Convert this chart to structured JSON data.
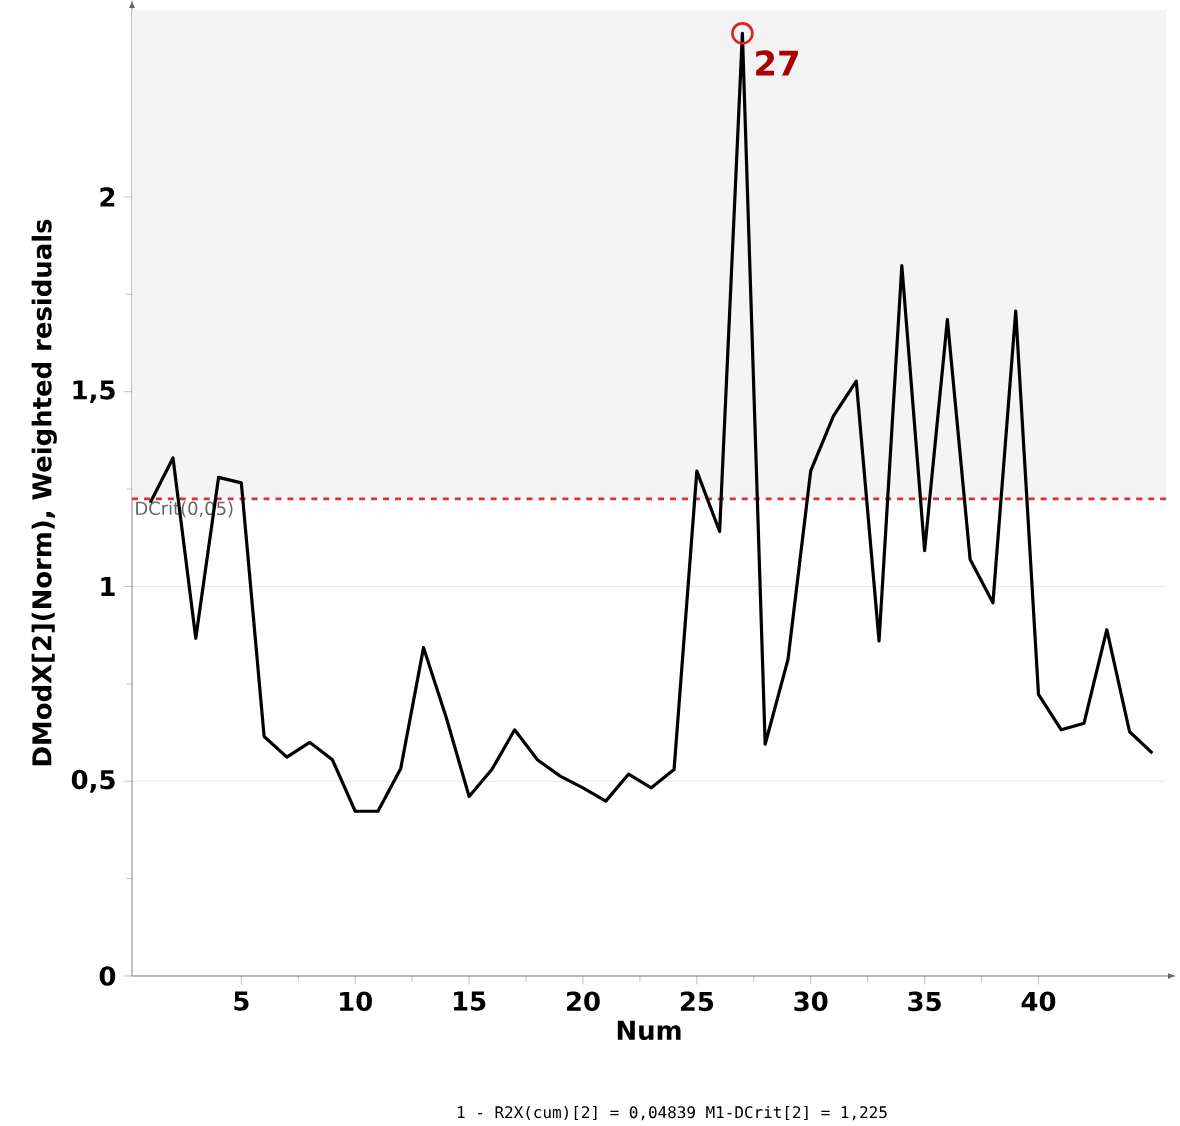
{
  "chart_data": {
    "type": "line",
    "xlabel": "Num",
    "ylabel": "DModX[2](Norm), Weighted residuals",
    "x": [
      1,
      2,
      3,
      4,
      5,
      6,
      7,
      8,
      9,
      10,
      11,
      12,
      13,
      14,
      15,
      16,
      17,
      18,
      19,
      20,
      21,
      22,
      23,
      24,
      25,
      26,
      27,
      28,
      29,
      30,
      31,
      32,
      33,
      34,
      35,
      36,
      37,
      38,
      39,
      40,
      41,
      42,
      43,
      44,
      45
    ],
    "series": [
      {
        "color": "#000000",
        "values": [
          1.215,
          1.33,
          0.867,
          1.28,
          1.266,
          0.615,
          0.562,
          0.6,
          0.555,
          0.423,
          0.423,
          0.533,
          0.843,
          0.663,
          0.461,
          0.53,
          0.632,
          0.555,
          0.513,
          0.483,
          0.449,
          0.518,
          0.483,
          0.53,
          1.296,
          1.141,
          2.42,
          0.595,
          0.812,
          1.297,
          1.438,
          1.527,
          0.86,
          1.824,
          1.092,
          1.685,
          1.069,
          0.958,
          1.707,
          0.723,
          0.632,
          0.649,
          0.889,
          0.627,
          0.572
        ]
      },
      {
        "type": "scatter",
        "color": "#e02020",
        "marker": "circle",
        "x": [
          27
        ],
        "values": [
          2.42
        ]
      }
    ],
    "xlim": [
      0.2,
      45.6
    ],
    "ylim": [
      0,
      2.48
    ],
    "xticks": [
      5,
      10,
      15,
      20,
      25,
      30,
      35,
      40
    ],
    "yticks": [
      0,
      {
        "value": 0.5,
        "label": "0,5"
      },
      1,
      {
        "value": 1.5,
        "label": "1,5"
      },
      2
    ],
    "grid": "y",
    "marker": "none",
    "line_style": "solid",
    "ref_lines": [
      {
        "axis": "y",
        "value": 1.225,
        "label": "DCrit(0,05)",
        "color": "#e03030",
        "line_style": "dashed"
      }
    ],
    "bands": [
      {
        "axis": "y",
        "from": 1.225,
        "to": 2.48,
        "color": "#f4f4f4"
      }
    ],
    "annotations": [
      {
        "text": "27",
        "x": 27,
        "y": 2.42
      },
      "1 - R2X(cum)[2] = 0,04839 M1-DCrit[2] = 1,225"
    ]
  }
}
